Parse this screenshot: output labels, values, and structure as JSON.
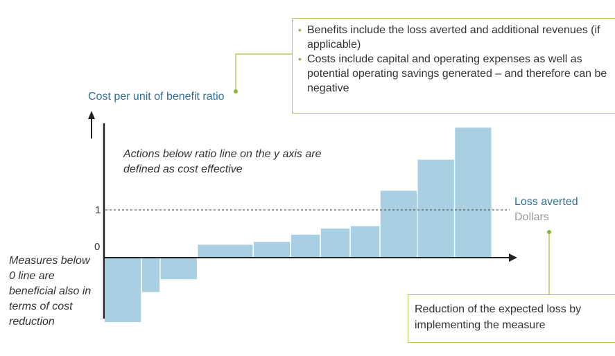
{
  "chart_data": {
    "type": "bar",
    "title": "",
    "ylabel": "Cost per unit of benefit ratio",
    "xlabel": "Loss averted",
    "x_unit": "Dollars",
    "y_ticks": [
      "1",
      "0"
    ],
    "reference_line": 1,
    "ylim": [
      -1.4,
      2.8
    ],
    "bar_color": "#a9cfe2",
    "bars": [
      {
        "width": 1.0,
        "value": -1.35
      },
      {
        "width": 0.5,
        "value": -0.72
      },
      {
        "width": 1.0,
        "value": -0.45
      },
      {
        "width": 1.5,
        "value": 0.27
      },
      {
        "width": 1.0,
        "value": 0.33
      },
      {
        "width": 0.8,
        "value": 0.48
      },
      {
        "width": 0.8,
        "value": 0.61
      },
      {
        "width": 0.8,
        "value": 0.66
      },
      {
        "width": 1.0,
        "value": 1.4
      },
      {
        "width": 1.0,
        "value": 2.05
      },
      {
        "width": 1.0,
        "value": 2.72
      }
    ]
  },
  "annotations": {
    "cost_effective": "Actions below ratio line on the y axis are defined as cost effective",
    "below_zero": "Measures below 0 line are beneficial also in terms of cost reduction",
    "box_top": [
      "Benefits include the loss averted and additional revenues (if applicable)",
      "Costs include capital and operating expenses as well as potential operating savings generated – and therefore can be negative"
    ],
    "box_bottom": "Reduction of the expected loss by implementing the measure"
  },
  "colors": {
    "label_blue": "#2e6f94",
    "callout_green": "#b5cc5c"
  }
}
